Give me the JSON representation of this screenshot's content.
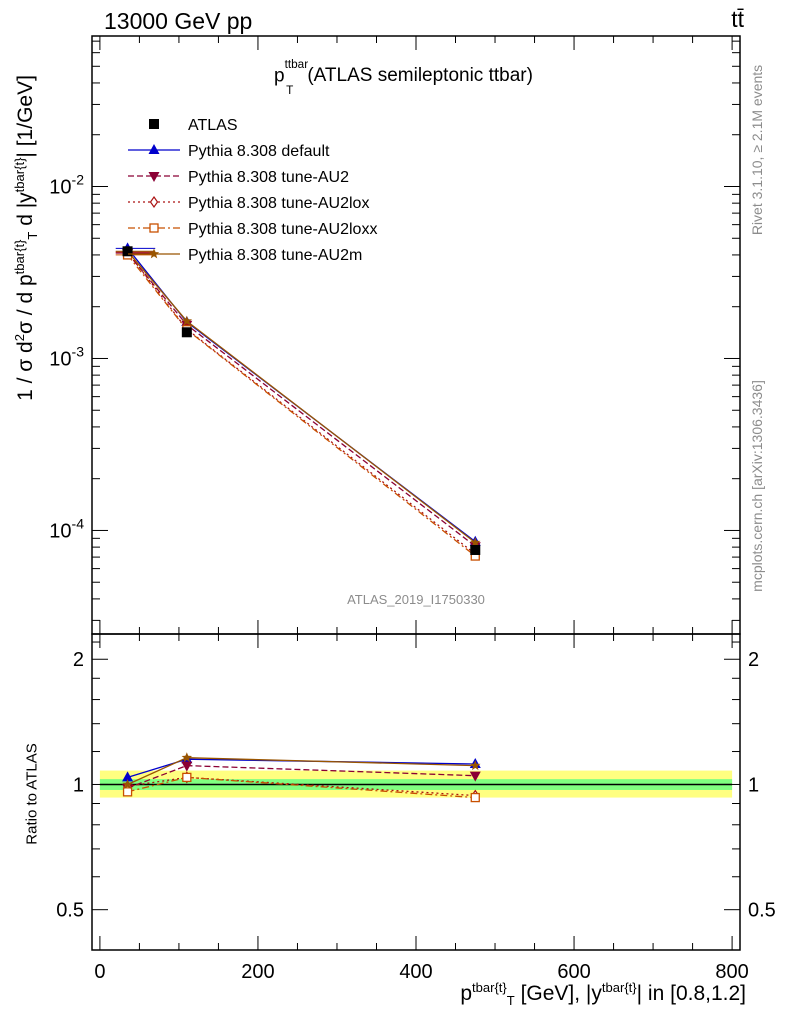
{
  "header": {
    "energy": "13000 GeV pp",
    "process": "tt̄"
  },
  "side_text": {
    "rivet": "Rivet 3.1.10, ≥ 2.1M events",
    "mcplots": "mcplots.cern.ch [arXiv:1306.3436]"
  },
  "watermark": "ATLAS_2019_I1750330",
  "chart_data": [
    {
      "type": "line",
      "title": "p_T^ttbar (ATLAS semileptonic ttbar)",
      "ylabel": "1 / σ d²σ / d p^{tbar{t}}_T d |y^{tbar{t}}| [1/GeV]",
      "yscale": "log",
      "ylim": [
        2.5e-05,
        0.075
      ],
      "xlim": [
        -10,
        810
      ],
      "yticks": [
        {
          "value": 0.0001,
          "label": "10^-4"
        },
        {
          "value": 0.001,
          "label": "10^-3"
        },
        {
          "value": 0.01,
          "label": "10^-2"
        }
      ],
      "legend_position": "top-left",
      "x": [
        35,
        110,
        475
      ],
      "series": [
        {
          "name": "ATLAS",
          "color": "#000000",
          "marker": "square-filled",
          "values": [
            0.0042,
            0.00142,
            7.7e-05
          ]
        },
        {
          "name": "Pythia 8.308 default",
          "color": "#0000cc",
          "marker": "triangle-up-filled",
          "dash": "",
          "values": [
            0.00437,
            0.00163,
            8.6e-05
          ]
        },
        {
          "name": "Pythia 8.308 tune-AU2",
          "color": "#8b0035",
          "marker": "triangle-down-filled",
          "dash": "6,3",
          "values": [
            0.0041,
            0.00157,
            8.1e-05
          ]
        },
        {
          "name": "Pythia 8.308 tune-AU2lox",
          "color": "#aa1111",
          "marker": "diamond-open",
          "dash": "2,3",
          "values": [
            0.00415,
            0.00148,
            7.3e-05
          ]
        },
        {
          "name": "Pythia 8.308 tune-AU2loxx",
          "color": "#c85000",
          "marker": "square-open",
          "dash": "7,3,2,3",
          "values": [
            0.004,
            0.00147,
            7.1e-05
          ]
        },
        {
          "name": "Pythia 8.308 tune-AU2m",
          "color": "#995500",
          "marker": "star",
          "dash": "",
          "values": [
            0.0042,
            0.00165,
            8.5e-05
          ]
        }
      ]
    },
    {
      "type": "line",
      "ylabel": "Ratio to ATLAS",
      "xlabel": "p^{tbar{t}}_T [GeV], |y^{tbar{t}}| in [0.8,1.2]",
      "yscale": "log",
      "ylim": [
        0.4,
        2.3
      ],
      "xlim": [
        -10,
        810
      ],
      "yticks": [
        {
          "value": 0.5,
          "label": "0.5"
        },
        {
          "value": 1,
          "label": "1"
        },
        {
          "value": 2,
          "label": "2"
        }
      ],
      "xticks": [
        0,
        200,
        400,
        600,
        800
      ],
      "bands": [
        {
          "name": "total uncertainty",
          "color": "#ffff80",
          "x0": 0,
          "x1": 800,
          "lo": 0.93,
          "hi": 1.08
        },
        {
          "name": "stat uncertainty",
          "color": "#80ff80",
          "x0": 0,
          "x1": 800,
          "lo": 0.97,
          "hi": 1.03
        }
      ],
      "x": [
        35,
        110,
        475
      ],
      "series": [
        {
          "name": "Pythia 8.308 default",
          "values": [
            1.04,
            1.15,
            1.12
          ]
        },
        {
          "name": "Pythia 8.308 tune-AU2",
          "values": [
            0.98,
            1.11,
            1.05
          ]
        },
        {
          "name": "Pythia 8.308 tune-AU2lox",
          "values": [
            0.99,
            1.04,
            0.94
          ]
        },
        {
          "name": "Pythia 8.308 tune-AU2loxx",
          "values": [
            0.96,
            1.04,
            0.93
          ]
        },
        {
          "name": "Pythia 8.308 tune-AU2m",
          "values": [
            1.0,
            1.16,
            1.11
          ]
        }
      ]
    }
  ]
}
